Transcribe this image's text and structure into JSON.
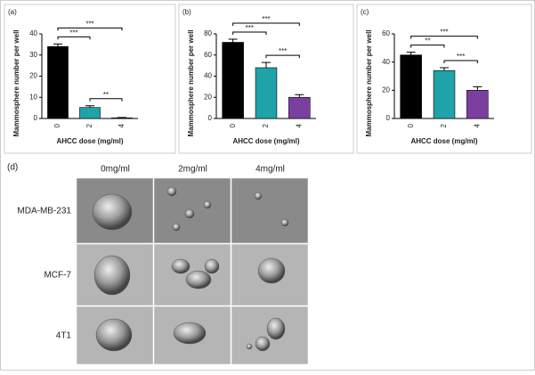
{
  "chart_data": [
    {
      "type": "bar",
      "panel_label": "(a)",
      "categories": [
        "0",
        "2",
        "4"
      ],
      "values": [
        34,
        5.2,
        0.3
      ],
      "errors": [
        1.2,
        0.8,
        0.2
      ],
      "colors": [
        "#000000",
        "#1fa3a8",
        "#7b3fa0"
      ],
      "ylim": [
        0,
        40
      ],
      "yticks": [
        0,
        10,
        20,
        30,
        40
      ],
      "xlabel": "AHCC dose (mg/ml)",
      "ylabel": "Mammosphere number per well",
      "significance": [
        {
          "categories": [
            "0",
            "2"
          ],
          "label": "***"
        },
        {
          "categories": [
            "0",
            "4"
          ],
          "label": "***"
        },
        {
          "categories": [
            "2",
            "4"
          ],
          "label": "**"
        }
      ]
    },
    {
      "type": "bar",
      "panel_label": "(b)",
      "categories": [
        "0",
        "2",
        "4"
      ],
      "values": [
        72,
        48,
        20
      ],
      "errors": [
        3,
        5,
        2.5
      ],
      "colors": [
        "#000000",
        "#1fa3a8",
        "#7b3fa0"
      ],
      "ylim": [
        0,
        80
      ],
      "yticks": [
        0,
        20,
        40,
        60,
        80
      ],
      "xlabel": "AHCC dose (mg/ml)",
      "ylabel": "Mammosphere number per well",
      "significance": [
        {
          "categories": [
            "0",
            "2"
          ],
          "label": "***"
        },
        {
          "categories": [
            "0",
            "4"
          ],
          "label": "***"
        },
        {
          "categories": [
            "2",
            "4"
          ],
          "label": "***"
        }
      ]
    },
    {
      "type": "bar",
      "panel_label": "(c)",
      "categories": [
        "0",
        "2",
        "4"
      ],
      "values": [
        45,
        34,
        20
      ],
      "errors": [
        2,
        2,
        2.5
      ],
      "colors": [
        "#000000",
        "#1fa3a8",
        "#7b3fa0"
      ],
      "ylim": [
        0,
        60
      ],
      "yticks": [
        0,
        20,
        40,
        60
      ],
      "xlabel": "AHCC dose (mg/ml)",
      "ylabel": "Mammosphere number per well",
      "significance": [
        {
          "categories": [
            "0",
            "2"
          ],
          "label": "**"
        },
        {
          "categories": [
            "0",
            "4"
          ],
          "label": "***"
        },
        {
          "categories": [
            "2",
            "4"
          ],
          "label": "***"
        }
      ]
    }
  ],
  "panel_d": {
    "panel_label": "(d)",
    "columns": [
      "0mg/ml",
      "2mg/ml",
      "4mg/ml"
    ],
    "rows": [
      "MDA-MB-231",
      "MCF-7",
      "4T1"
    ]
  }
}
